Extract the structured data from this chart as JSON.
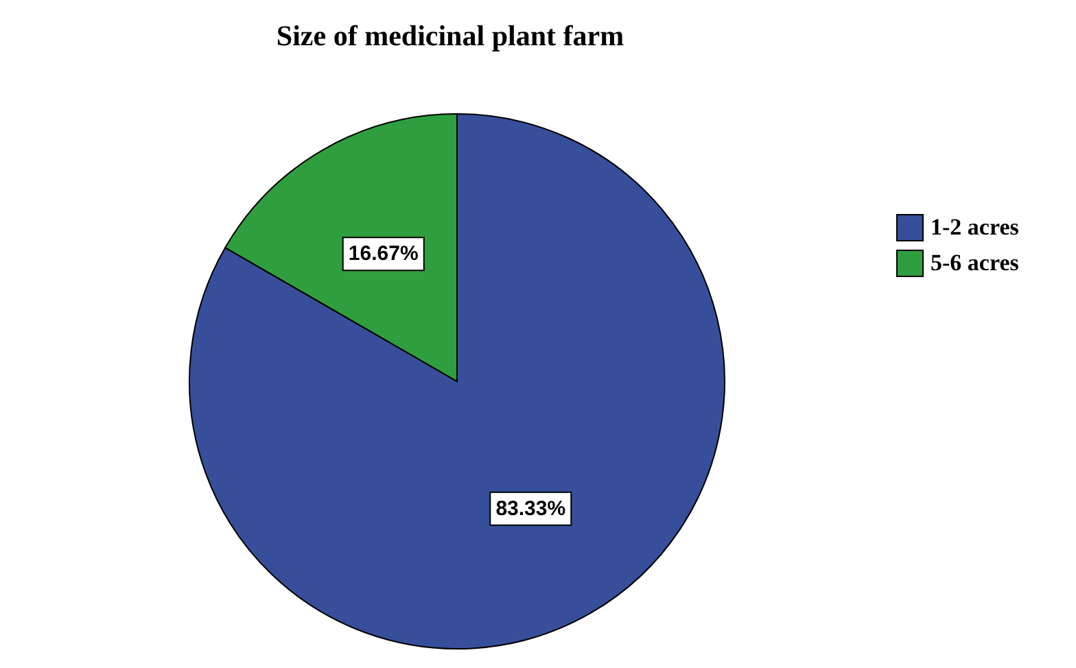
{
  "chart_data": {
    "type": "pie",
    "title": "Size of medicinal plant farm",
    "categories": [
      "1-2 acres",
      "5-6 acres"
    ],
    "values": [
      83.33,
      16.67
    ],
    "colors": [
      "#374f9a",
      "#2f9e3f"
    ],
    "value_labels": [
      "83.33%",
      "16.67%"
    ],
    "legend": "right"
  }
}
